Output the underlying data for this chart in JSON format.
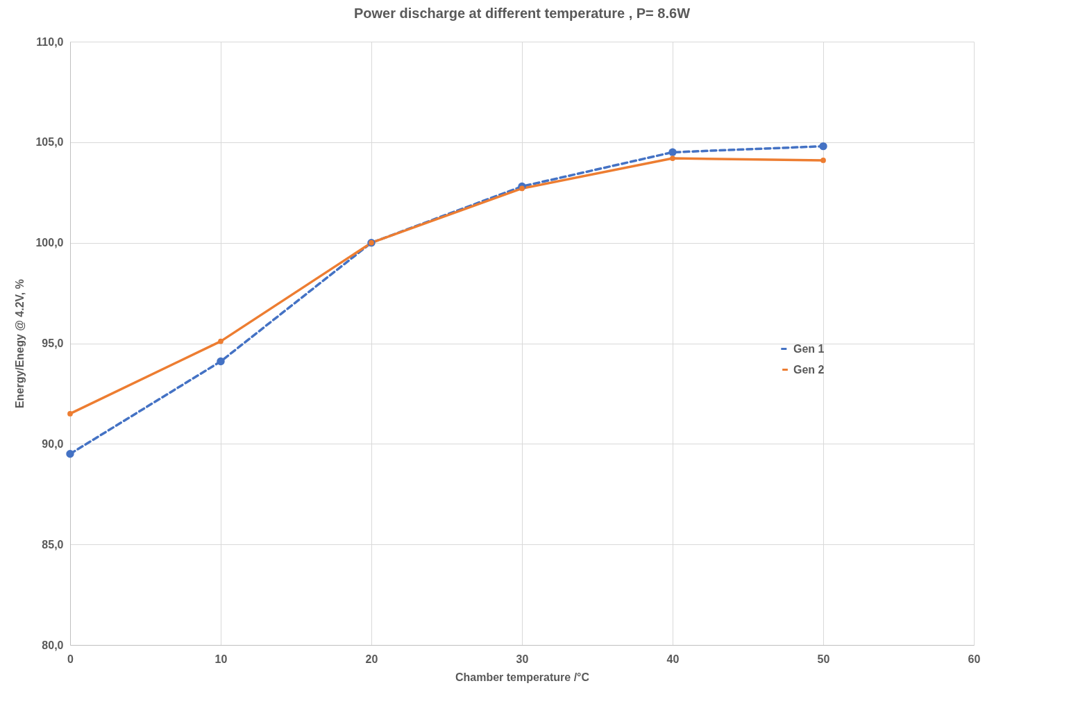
{
  "chart_data": {
    "type": "line",
    "title": "Power discharge at different temperature , P= 8.6W",
    "xlabel": "Chamber temperature /°C",
    "ylabel": "Energy/Enegy @ 4.2V, %",
    "x": [
      0,
      10,
      20,
      30,
      40,
      50
    ],
    "series": [
      {
        "name": "Gen 1",
        "color": "#4472c4",
        "line_style": "dashed",
        "values": [
          89.5,
          94.1,
          100,
          102.8,
          104.5,
          104.8
        ]
      },
      {
        "name": "Gen 2",
        "color": "#ed7d31",
        "line_style": "solid",
        "values": [
          91.5,
          95.1,
          100,
          102.7,
          104.2,
          104.1
        ]
      }
    ],
    "xlim": [
      0,
      60
    ],
    "xticks": [
      0,
      10,
      20,
      30,
      40,
      50,
      60
    ],
    "ylim": [
      80,
      110
    ],
    "yticks": [
      {
        "value": 80,
        "label": "80,0"
      },
      {
        "value": 85,
        "label": "85,0"
      },
      {
        "value": 90,
        "label": "90,0"
      },
      {
        "value": 95,
        "label": "95,0"
      },
      {
        "value": 100,
        "label": "100,0"
      },
      {
        "value": 105,
        "label": "105,0"
      },
      {
        "value": 110,
        "label": "110,0"
      }
    ],
    "grid": true,
    "legend": "right",
    "marker": "circle"
  }
}
